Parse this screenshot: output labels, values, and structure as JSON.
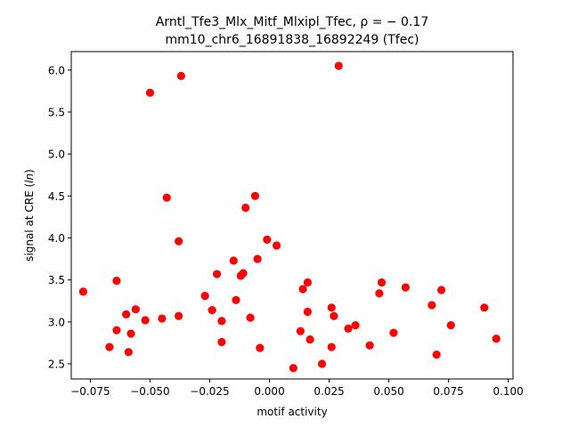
{
  "chart_data": {
    "type": "scatter",
    "title_line1": "Arntl_Tfe3_Mlx_Mitf_Mlxipl_Tfec, ρ = − 0.17",
    "title_line2": "mm10_chr6_16891838_16892249 (Tfec)",
    "xlabel": "motif activity",
    "ylabel_prefix": "signal at CRE (",
    "ylabel_italic": "ln",
    "ylabel_suffix": ")",
    "xlim": [
      -0.083,
      0.102
    ],
    "ylim": [
      2.32,
      6.22
    ],
    "x_ticks": [
      -0.075,
      -0.05,
      -0.025,
      0.0,
      0.025,
      0.05,
      0.075,
      0.1
    ],
    "x_tick_labels": [
      "−0.075",
      "−0.050",
      "−0.025",
      "0.000",
      "0.025",
      "0.050",
      "0.075",
      "0.100"
    ],
    "y_ticks": [
      2.5,
      3.0,
      3.5,
      4.0,
      4.5,
      5.0,
      5.5,
      6.0
    ],
    "y_tick_labels": [
      "2.5",
      "3.0",
      "3.5",
      "4.0",
      "4.5",
      "5.0",
      "5.5",
      "6.0"
    ],
    "marker_color": "#ff0000",
    "points": [
      {
        "x": -0.078,
        "y": 3.36
      },
      {
        "x": -0.067,
        "y": 2.7
      },
      {
        "x": -0.064,
        "y": 2.9
      },
      {
        "x": -0.064,
        "y": 3.49
      },
      {
        "x": -0.06,
        "y": 3.09
      },
      {
        "x": -0.059,
        "y": 2.64
      },
      {
        "x": -0.058,
        "y": 2.86
      },
      {
        "x": -0.056,
        "y": 3.15
      },
      {
        "x": -0.052,
        "y": 3.02
      },
      {
        "x": -0.05,
        "y": 5.73
      },
      {
        "x": -0.045,
        "y": 3.04
      },
      {
        "x": -0.043,
        "y": 4.48
      },
      {
        "x": -0.038,
        "y": 3.96
      },
      {
        "x": -0.038,
        "y": 3.07
      },
      {
        "x": -0.037,
        "y": 5.93
      },
      {
        "x": -0.027,
        "y": 3.31
      },
      {
        "x": -0.024,
        "y": 3.14
      },
      {
        "x": -0.022,
        "y": 3.57
      },
      {
        "x": -0.02,
        "y": 2.76
      },
      {
        "x": -0.02,
        "y": 3.01
      },
      {
        "x": -0.015,
        "y": 3.73
      },
      {
        "x": -0.014,
        "y": 3.26
      },
      {
        "x": -0.012,
        "y": 3.55
      },
      {
        "x": -0.011,
        "y": 3.58
      },
      {
        "x": -0.01,
        "y": 4.36
      },
      {
        "x": -0.008,
        "y": 3.05
      },
      {
        "x": -0.006,
        "y": 4.5
      },
      {
        "x": -0.005,
        "y": 3.75
      },
      {
        "x": -0.004,
        "y": 2.69
      },
      {
        "x": -0.001,
        "y": 3.98
      },
      {
        "x": 0.003,
        "y": 3.91
      },
      {
        "x": 0.01,
        "y": 2.45
      },
      {
        "x": 0.013,
        "y": 2.89
      },
      {
        "x": 0.014,
        "y": 3.39
      },
      {
        "x": 0.016,
        "y": 3.12
      },
      {
        "x": 0.016,
        "y": 3.47
      },
      {
        "x": 0.017,
        "y": 2.79
      },
      {
        "x": 0.022,
        "y": 2.5
      },
      {
        "x": 0.026,
        "y": 3.17
      },
      {
        "x": 0.026,
        "y": 2.7
      },
      {
        "x": 0.027,
        "y": 3.07
      },
      {
        "x": 0.029,
        "y": 6.05
      },
      {
        "x": 0.033,
        "y": 2.92
      },
      {
        "x": 0.036,
        "y": 2.96
      },
      {
        "x": 0.042,
        "y": 2.72
      },
      {
        "x": 0.046,
        "y": 3.34
      },
      {
        "x": 0.047,
        "y": 3.47
      },
      {
        "x": 0.052,
        "y": 2.87
      },
      {
        "x": 0.057,
        "y": 3.41
      },
      {
        "x": 0.068,
        "y": 3.2
      },
      {
        "x": 0.07,
        "y": 2.61
      },
      {
        "x": 0.072,
        "y": 3.38
      },
      {
        "x": 0.076,
        "y": 2.96
      },
      {
        "x": 0.09,
        "y": 3.17
      },
      {
        "x": 0.095,
        "y": 2.8
      }
    ]
  }
}
